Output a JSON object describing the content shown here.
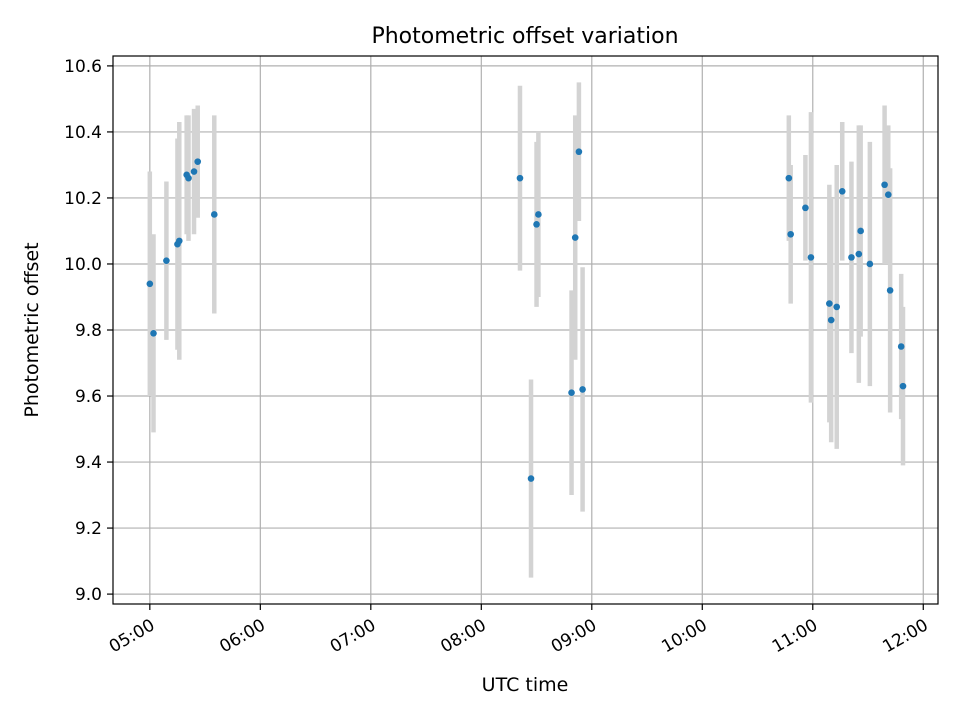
{
  "chart_data": {
    "type": "scatter",
    "title": "Photometric offset variation",
    "xlabel": "UTC time",
    "ylabel": "Photometric offset",
    "x_range": [
      "04:40",
      "12:08"
    ],
    "ylim": [
      8.97,
      10.63
    ],
    "x_ticks": [
      "05:00",
      "06:00",
      "07:00",
      "08:00",
      "09:00",
      "10:00",
      "11:00",
      "12:00"
    ],
    "y_ticks": [
      "9.0",
      "9.2",
      "9.4",
      "9.6",
      "9.8",
      "10.0",
      "10.2",
      "10.4",
      "10.6"
    ],
    "grid": true,
    "point_color": "#1f77b4",
    "errorbar_color": "#d3d3d3",
    "points": [
      {
        "x": "05:00:00",
        "y": 9.94,
        "err": 0.34
      },
      {
        "x": "05:02:00",
        "y": 9.79,
        "err": 0.3
      },
      {
        "x": "05:09:00",
        "y": 10.01,
        "err": 0.24
      },
      {
        "x": "05:15:00",
        "y": 10.06,
        "err": 0.32
      },
      {
        "x": "05:16:00",
        "y": 10.07,
        "err": 0.36
      },
      {
        "x": "05:20:00",
        "y": 10.27,
        "err": 0.18
      },
      {
        "x": "05:21:00",
        "y": 10.26,
        "err": 0.19
      },
      {
        "x": "05:24:00",
        "y": 10.28,
        "err": 0.19
      },
      {
        "x": "05:26:00",
        "y": 10.31,
        "err": 0.17
      },
      {
        "x": "05:35:00",
        "y": 10.15,
        "err": 0.3
      },
      {
        "x": "08:21:00",
        "y": 10.26,
        "err": 0.28
      },
      {
        "x": "08:27:00",
        "y": 9.35,
        "err": 0.3
      },
      {
        "x": "08:30:00",
        "y": 10.12,
        "err": 0.25
      },
      {
        "x": "08:31:00",
        "y": 10.15,
        "err": 0.25
      },
      {
        "x": "08:49:00",
        "y": 9.61,
        "err": 0.31
      },
      {
        "x": "08:51:00",
        "y": 10.08,
        "err": 0.37
      },
      {
        "x": "08:53:00",
        "y": 10.34,
        "err": 0.21
      },
      {
        "x": "08:55:00",
        "y": 9.62,
        "err": 0.37
      },
      {
        "x": "10:47:00",
        "y": 10.26,
        "err": 0.19
      },
      {
        "x": "10:48:00",
        "y": 10.09,
        "err": 0.21
      },
      {
        "x": "10:56:00",
        "y": 10.17,
        "err": 0.16
      },
      {
        "x": "10:59:00",
        "y": 10.02,
        "err": 0.44
      },
      {
        "x": "11:09:00",
        "y": 9.88,
        "err": 0.36
      },
      {
        "x": "11:10:00",
        "y": 9.83,
        "err": 0.37
      },
      {
        "x": "11:13:00",
        "y": 9.87,
        "err": 0.43
      },
      {
        "x": "11:16:00",
        "y": 10.22,
        "err": 0.21
      },
      {
        "x": "11:21:00",
        "y": 10.02,
        "err": 0.29
      },
      {
        "x": "11:25:00",
        "y": 10.03,
        "err": 0.39
      },
      {
        "x": "11:26:00",
        "y": 10.1,
        "err": 0.32
      },
      {
        "x": "11:31:00",
        "y": 10.0,
        "err": 0.37
      },
      {
        "x": "11:39:00",
        "y": 10.24,
        "err": 0.24
      },
      {
        "x": "11:41:00",
        "y": 10.21,
        "err": 0.21
      },
      {
        "x": "11:42:00",
        "y": 9.92,
        "err": 0.37
      },
      {
        "x": "11:48:00",
        "y": 9.75,
        "err": 0.22
      },
      {
        "x": "11:49:00",
        "y": 9.63,
        "err": 0.24
      }
    ]
  }
}
